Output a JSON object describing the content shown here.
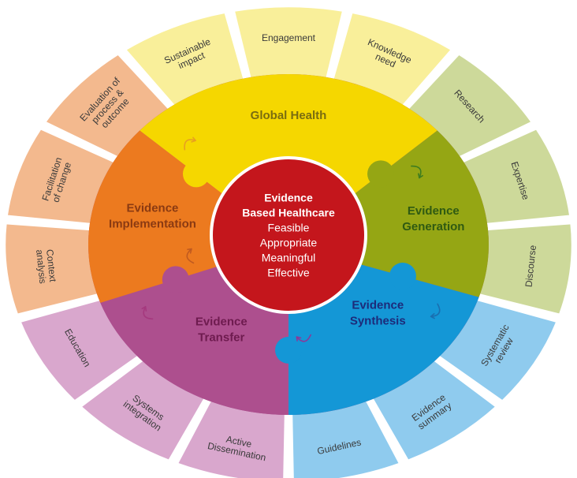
{
  "colors": {
    "yellow_dark": "#f5d700",
    "yellow_light": "#f9ef9a",
    "green_dark": "#95a614",
    "green_light": "#cdd99a",
    "blue_dark": "#1497d6",
    "blue_light": "#8fcbee",
    "purple_dark": "#ad4f8e",
    "purple_light": "#d9a7cd",
    "orange_dark": "#ec7a1f",
    "orange_light": "#f3b98e",
    "center": "#c4161c",
    "quad_text_yellow": "#7a6d10",
    "quad_text_green": "#2f5a12",
    "quad_text_blue": "#1d2b7a",
    "quad_text_purple": "#6e1b4f",
    "quad_text_orange": "#8a3a12"
  },
  "center": {
    "title_line1": "Evidence",
    "title_line2": "Based Healthcare",
    "items": [
      "Feasible",
      "Appropriate",
      "Meaningful",
      "Effective"
    ]
  },
  "quadrants": [
    {
      "key": "global",
      "lines": [
        "Global Health"
      ]
    },
    {
      "key": "generation",
      "lines": [
        "Evidence",
        "Generation"
      ]
    },
    {
      "key": "synthesis",
      "lines": [
        "Evidence",
        "Synthesis"
      ]
    },
    {
      "key": "transfer",
      "lines": [
        "Evidence",
        "Transfer"
      ]
    },
    {
      "key": "implementation",
      "lines": [
        "Evidence",
        "Implementation"
      ]
    }
  ],
  "outer_segments": [
    {
      "lines": [
        "Engagement"
      ],
      "group": "yellow"
    },
    {
      "lines": [
        "Knowledge",
        "need"
      ],
      "group": "yellow"
    },
    {
      "lines": [
        "Research"
      ],
      "group": "green"
    },
    {
      "lines": [
        "Expertise"
      ],
      "group": "green"
    },
    {
      "lines": [
        "Discourse"
      ],
      "group": "green"
    },
    {
      "lines": [
        "Systematic",
        "review"
      ],
      "group": "blue"
    },
    {
      "lines": [
        "Evidence",
        "summary"
      ],
      "group": "blue"
    },
    {
      "lines": [
        "Guidelines"
      ],
      "group": "blue"
    },
    {
      "lines": [
        "Active",
        "Dissemination"
      ],
      "group": "purple"
    },
    {
      "lines": [
        "Systems",
        "integration"
      ],
      "group": "purple"
    },
    {
      "lines": [
        "Education"
      ],
      "group": "purple"
    },
    {
      "lines": [
        "Context",
        "analysis"
      ],
      "group": "orange"
    },
    {
      "lines": [
        "Facilitation",
        "of change"
      ],
      "group": "orange"
    },
    {
      "lines": [
        "Evaluation of",
        "process &",
        "outcome"
      ],
      "group": "orange"
    },
    {
      "lines": [
        "Sustainable",
        "impact"
      ],
      "group": "yellow"
    }
  ]
}
